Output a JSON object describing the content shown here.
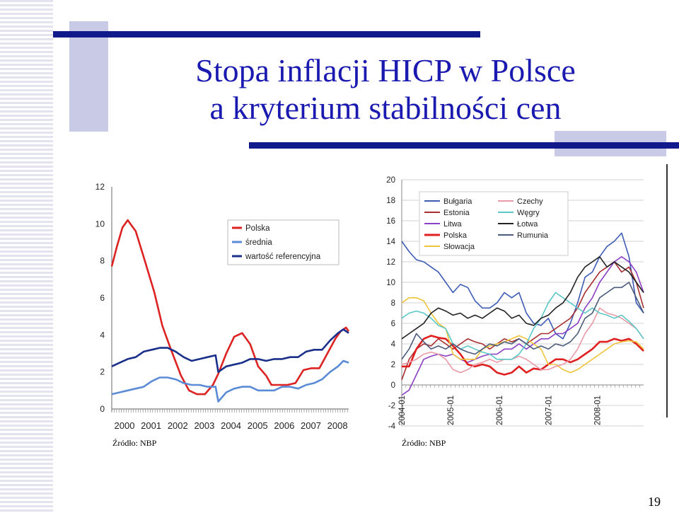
{
  "title": {
    "line1": "Stopa inflacji HICP w Polsce",
    "line2": "a kryterium stabilności cen"
  },
  "sources": {
    "left": "Źródło: NBP",
    "right": "Źródło: NBP"
  },
  "page_number": "19",
  "colors": {
    "accent_bar": "#111a8a",
    "accent_square": "#c9cae6",
    "title": "#1a1ab0"
  },
  "chart_data": [
    {
      "type": "line",
      "x_tick_labels": [
        "2000",
        "2001",
        "2002",
        "2003",
        "2004",
        "2005",
        "2006",
        "2007",
        "2008"
      ],
      "y_tick_labels": [
        "0",
        "2",
        "4",
        "6",
        "8",
        "10",
        "12"
      ],
      "ylim": [
        0,
        12
      ],
      "xlim": [
        2000,
        2008.9
      ],
      "grid": false,
      "legend_position": "top-right",
      "series": [
        {
          "name": "Polska",
          "color": "#dd2222",
          "x": [
            2000,
            2000.2,
            2000.4,
            2000.6,
            2000.9,
            2001.2,
            2001.6,
            2001.9,
            2002.2,
            2002.6,
            2002.9,
            2003.2,
            2003.5,
            2003.8,
            2004.0,
            2004.3,
            2004.6,
            2004.9,
            2005.2,
            2005.5,
            2005.8,
            2006.0,
            2006.3,
            2006.6,
            2006.9,
            2007.2,
            2007.5,
            2007.8,
            2008.1,
            2008.4,
            2008.6,
            2008.8,
            2008.9
          ],
          "values": [
            7.7,
            8.8,
            9.8,
            10.2,
            9.6,
            8.2,
            6.3,
            4.5,
            3.3,
            1.8,
            1.0,
            0.8,
            0.8,
            1.3,
            1.9,
            3.0,
            3.9,
            4.1,
            3.5,
            2.3,
            1.8,
            1.3,
            1.3,
            1.3,
            1.4,
            2.1,
            2.2,
            2.2,
            3.0,
            3.8,
            4.2,
            4.4,
            4.2
          ]
        },
        {
          "name": "średnia",
          "color": "#5b8bd6",
          "x": [
            2000,
            2000.3,
            2000.6,
            2000.9,
            2001.2,
            2001.5,
            2001.8,
            2002.1,
            2002.4,
            2002.7,
            2003.0,
            2003.3,
            2003.6,
            2003.9,
            2004.0,
            2004.3,
            2004.6,
            2004.9,
            2005.2,
            2005.5,
            2005.8,
            2006.1,
            2006.4,
            2006.7,
            2007.0,
            2007.3,
            2007.6,
            2007.9,
            2008.2,
            2008.5,
            2008.7,
            2008.9
          ],
          "values": [
            0.8,
            0.9,
            1.0,
            1.1,
            1.2,
            1.5,
            1.7,
            1.7,
            1.6,
            1.4,
            1.3,
            1.3,
            1.2,
            1.2,
            0.4,
            0.9,
            1.1,
            1.2,
            1.2,
            1.0,
            1.0,
            1.0,
            1.2,
            1.2,
            1.1,
            1.3,
            1.4,
            1.6,
            2.0,
            2.3,
            2.6,
            2.5
          ]
        },
        {
          "name": "wartość referencyjna",
          "color": "#1a2f8a",
          "x": [
            2000,
            2000.3,
            2000.6,
            2000.9,
            2001.2,
            2001.5,
            2001.8,
            2002.1,
            2002.4,
            2002.7,
            2003.0,
            2003.3,
            2003.6,
            2003.9,
            2004.0,
            2004.3,
            2004.6,
            2004.9,
            2005.2,
            2005.5,
            2005.8,
            2006.1,
            2006.4,
            2006.7,
            2007.0,
            2007.3,
            2007.6,
            2007.9,
            2008.2,
            2008.5,
            2008.7,
            2008.9
          ],
          "values": [
            2.3,
            2.5,
            2.7,
            2.8,
            3.1,
            3.2,
            3.3,
            3.3,
            3.1,
            2.8,
            2.6,
            2.7,
            2.8,
            2.9,
            2.0,
            2.3,
            2.4,
            2.5,
            2.7,
            2.7,
            2.6,
            2.7,
            2.7,
            2.8,
            2.8,
            3.1,
            3.2,
            3.2,
            3.7,
            4.1,
            4.3,
            4.1
          ]
        }
      ]
    },
    {
      "type": "line",
      "x_tick_labels": [
        "2004-01",
        "2005-01",
        "2006-01",
        "2007-01",
        "2008-01"
      ],
      "y_tick_labels": [
        "-4",
        "-2",
        "0",
        "2",
        "4",
        "6",
        "8",
        "10",
        "12",
        "14",
        "16",
        "18",
        "20"
      ],
      "ylim": [
        -4,
        20
      ],
      "xlim": [
        2004.0,
        2008.95
      ],
      "grid": true,
      "legend_position": "top",
      "series": [
        {
          "name": "Bułgaria",
          "color": "#3d5bb5",
          "x": [
            2004.0,
            2004.15,
            2004.3,
            2004.45,
            2004.6,
            2004.75,
            2004.9,
            2005.05,
            2005.2,
            2005.35,
            2005.5,
            2005.65,
            2005.8,
            2005.95,
            2006.1,
            2006.25,
            2006.4,
            2006.55,
            2006.7,
            2006.85,
            2007.0,
            2007.15,
            2007.3,
            2007.45,
            2007.6,
            2007.75,
            2007.9,
            2008.05,
            2008.2,
            2008.35,
            2008.5,
            2008.65,
            2008.8,
            2008.95
          ],
          "values": [
            14.0,
            13.0,
            12.2,
            12.0,
            11.5,
            11.0,
            10.0,
            9.0,
            9.8,
            9.5,
            8.2,
            7.5,
            7.5,
            8.0,
            9.0,
            8.5,
            9.0,
            7.0,
            6.0,
            5.8,
            6.5,
            5.0,
            4.5,
            6.0,
            8.0,
            10.5,
            11.0,
            12.5,
            13.5,
            14.0,
            14.8,
            12.5,
            8.0,
            7.0
          ]
        },
        {
          "name": "Estonia",
          "color": "#a83030",
          "x": [
            2004.0,
            2004.15,
            2004.3,
            2004.45,
            2004.6,
            2004.75,
            2004.9,
            2005.05,
            2005.2,
            2005.35,
            2005.5,
            2005.65,
            2005.8,
            2005.95,
            2006.1,
            2006.25,
            2006.4,
            2006.55,
            2006.7,
            2006.85,
            2007.0,
            2007.15,
            2007.3,
            2007.45,
            2007.6,
            2007.75,
            2007.9,
            2008.05,
            2008.2,
            2008.35,
            2008.5,
            2008.65,
            2008.8,
            2008.95
          ],
          "values": [
            0.5,
            2.5,
            3.5,
            4.0,
            3.8,
            4.5,
            4.0,
            3.5,
            4.0,
            4.5,
            4.2,
            4.0,
            3.5,
            4.0,
            4.5,
            4.2,
            4.5,
            4.0,
            4.5,
            5.0,
            5.0,
            5.5,
            6.0,
            6.5,
            7.5,
            9.0,
            10.0,
            11.0,
            11.5,
            12.0,
            11.0,
            11.5,
            10.0,
            7.5
          ]
        },
        {
          "name": "Litwa",
          "color": "#8a3fc4",
          "x": [
            2004.0,
            2004.15,
            2004.3,
            2004.45,
            2004.6,
            2004.75,
            2004.9,
            2005.05,
            2005.2,
            2005.35,
            2005.5,
            2005.65,
            2005.8,
            2005.95,
            2006.1,
            2006.25,
            2006.4,
            2006.55,
            2006.7,
            2006.85,
            2007.0,
            2007.15,
            2007.3,
            2007.45,
            2007.6,
            2007.75,
            2007.9,
            2008.05,
            2008.2,
            2008.35,
            2008.5,
            2008.65,
            2008.8,
            2008.95
          ],
          "values": [
            -1.0,
            -0.5,
            1.0,
            2.5,
            2.8,
            3.0,
            2.8,
            3.0,
            2.5,
            2.2,
            2.5,
            2.8,
            3.0,
            3.0,
            3.5,
            3.5,
            4.0,
            3.5,
            4.0,
            4.5,
            4.5,
            5.0,
            5.0,
            5.5,
            6.0,
            7.5,
            8.5,
            10.0,
            11.0,
            12.0,
            12.5,
            12.0,
            11.0,
            9.0
          ]
        },
        {
          "name": "Polska",
          "color": "#e02020",
          "x": [
            2004.0,
            2004.15,
            2004.3,
            2004.45,
            2004.6,
            2004.75,
            2004.9,
            2005.05,
            2005.2,
            2005.35,
            2005.5,
            2005.65,
            2005.8,
            2005.95,
            2006.1,
            2006.25,
            2006.4,
            2006.55,
            2006.7,
            2006.85,
            2007.0,
            2007.15,
            2007.3,
            2007.45,
            2007.6,
            2007.75,
            2007.9,
            2008.05,
            2008.2,
            2008.35,
            2008.5,
            2008.65,
            2008.8,
            2008.95
          ],
          "values": [
            1.8,
            1.8,
            3.5,
            4.5,
            4.8,
            4.6,
            4.5,
            3.8,
            3.0,
            2.0,
            1.8,
            2.0,
            1.8,
            1.2,
            1.0,
            1.2,
            1.8,
            1.2,
            1.6,
            1.5,
            2.0,
            2.5,
            2.5,
            2.2,
            2.5,
            3.0,
            3.5,
            4.2,
            4.2,
            4.5,
            4.3,
            4.5,
            4.0,
            3.3
          ]
        },
        {
          "name": "Słowacja",
          "color": "#f0c43a",
          "x": [
            2004.0,
            2004.15,
            2004.3,
            2004.45,
            2004.6,
            2004.75,
            2004.9,
            2005.05,
            2005.2,
            2005.35,
            2005.5,
            2005.65,
            2005.8,
            2005.95,
            2006.1,
            2006.25,
            2006.4,
            2006.55,
            2006.7,
            2006.85,
            2007.0,
            2007.15,
            2007.3,
            2007.45,
            2007.6,
            2007.75,
            2007.9,
            2008.05,
            2008.2,
            2008.35,
            2008.5,
            2008.65,
            2008.8,
            2008.95
          ],
          "values": [
            8.0,
            8.5,
            8.5,
            8.2,
            7.0,
            6.0,
            5.5,
            3.0,
            2.5,
            2.5,
            2.5,
            3.5,
            3.8,
            4.0,
            4.2,
            4.5,
            4.8,
            4.5,
            4.0,
            3.5,
            2.0,
            2.0,
            1.5,
            1.2,
            1.5,
            2.0,
            2.5,
            3.0,
            3.5,
            4.0,
            4.2,
            4.3,
            4.2,
            3.5
          ]
        },
        {
          "name": "Czechy",
          "color": "#e89aa6",
          "x": [
            2004.0,
            2004.15,
            2004.3,
            2004.45,
            2004.6,
            2004.75,
            2004.9,
            2005.05,
            2005.2,
            2005.35,
            2005.5,
            2005.65,
            2005.8,
            2005.95,
            2006.1,
            2006.25,
            2006.4,
            2006.55,
            2006.7,
            2006.85,
            2007.0,
            2007.15,
            2007.3,
            2007.45,
            2007.6,
            2007.75,
            2007.9,
            2008.05,
            2008.2,
            2008.35,
            2008.5,
            2008.65,
            2008.8,
            2008.95
          ],
          "values": [
            2.0,
            2.2,
            2.5,
            3.0,
            3.2,
            3.0,
            2.5,
            1.5,
            1.2,
            1.5,
            2.0,
            2.2,
            2.5,
            2.2,
            2.5,
            2.5,
            2.8,
            2.5,
            2.0,
            1.5,
            1.5,
            1.8,
            2.0,
            2.5,
            3.5,
            5.0,
            6.0,
            7.5,
            7.0,
            6.8,
            6.5,
            6.0,
            5.5,
            4.5
          ]
        },
        {
          "name": "Węgry",
          "color": "#5bc7c7",
          "x": [
            2004.0,
            2004.15,
            2004.3,
            2004.45,
            2004.6,
            2004.75,
            2004.9,
            2005.05,
            2005.2,
            2005.35,
            2005.5,
            2005.65,
            2005.8,
            2005.95,
            2006.1,
            2006.25,
            2006.4,
            2006.55,
            2006.7,
            2006.85,
            2007.0,
            2007.15,
            2007.3,
            2007.45,
            2007.6,
            2007.75,
            2007.9,
            2008.05,
            2008.2,
            2008.35,
            2008.5,
            2008.65,
            2008.8,
            2008.95
          ],
          "values": [
            6.5,
            7.0,
            7.2,
            7.0,
            6.5,
            5.8,
            5.5,
            4.0,
            3.5,
            3.8,
            3.5,
            3.2,
            3.0,
            2.5,
            2.5,
            2.5,
            3.0,
            4.0,
            5.5,
            6.5,
            8.0,
            9.0,
            8.5,
            8.0,
            7.5,
            7.0,
            7.5,
            7.0,
            6.8,
            6.5,
            6.8,
            6.2,
            5.5,
            4.5
          ]
        },
        {
          "name": "Łotwa",
          "color": "#222222",
          "x": [
            2004.0,
            2004.15,
            2004.3,
            2004.45,
            2004.6,
            2004.75,
            2004.9,
            2005.05,
            2005.2,
            2005.35,
            2005.5,
            2005.65,
            2005.8,
            2005.95,
            2006.1,
            2006.25,
            2006.4,
            2006.55,
            2006.7,
            2006.85,
            2007.0,
            2007.15,
            2007.3,
            2007.45,
            2007.6,
            2007.75,
            2007.9,
            2008.05,
            2008.2,
            2008.35,
            2008.5,
            2008.65,
            2008.8,
            2008.95
          ],
          "values": [
            4.5,
            5.0,
            5.5,
            6.0,
            7.0,
            7.5,
            7.2,
            6.8,
            7.0,
            6.5,
            6.8,
            6.5,
            7.0,
            7.5,
            7.2,
            6.5,
            6.8,
            6.0,
            5.8,
            6.5,
            6.8,
            7.5,
            8.0,
            9.0,
            10.5,
            11.5,
            12.0,
            12.5,
            11.5,
            12.0,
            11.5,
            11.0,
            10.0,
            9.0
          ]
        },
        {
          "name": "Rumunia",
          "color": "#4a5a7a",
          "x": [
            2004.0,
            2004.15,
            2004.3,
            2004.45,
            2004.6,
            2004.75,
            2004.9,
            2005.05,
            2005.2,
            2005.35,
            2005.5,
            2005.65,
            2005.8,
            2005.95,
            2006.1,
            2006.25,
            2006.4,
            2006.55,
            2006.7,
            2006.85,
            2007.0,
            2007.15,
            2007.3,
            2007.45,
            2007.6,
            2007.75,
            2007.9,
            2008.05,
            2008.2,
            2008.35,
            2008.5,
            2008.65,
            2008.8,
            2008.95
          ],
          "values": [
            2.5,
            3.5,
            5.0,
            4.2,
            3.5,
            3.8,
            3.5,
            4.0,
            3.5,
            3.2,
            3.0,
            3.5,
            4.0,
            3.8,
            4.2,
            4.0,
            4.5,
            4.0,
            3.5,
            3.8,
            3.5,
            4.0,
            3.8,
            4.2,
            5.0,
            6.5,
            7.0,
            8.5,
            9.0,
            9.5,
            9.5,
            10.0,
            8.5,
            7.0
          ]
        }
      ]
    }
  ]
}
